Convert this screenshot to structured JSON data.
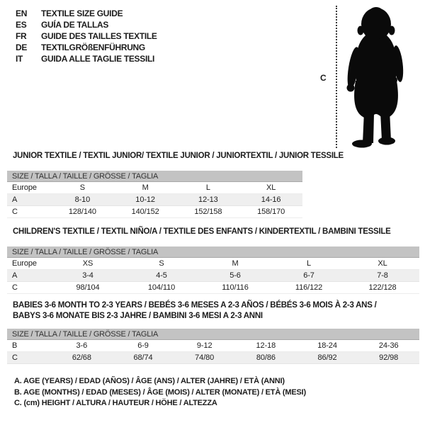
{
  "languages": [
    {
      "code": "EN",
      "label": "TEXTILE SIZE GUIDE"
    },
    {
      "code": "ES",
      "label": "GUÍA DE TALLAS"
    },
    {
      "code": "FR",
      "label": "GUIDE DES TAILLES TEXTILE"
    },
    {
      "code": "DE",
      "label": "TEXTILGRÖßENFÜHRUNG"
    },
    {
      "code": "IT",
      "label": "GUIDA ALLE TAGLIE TESSILI"
    }
  ],
  "figure": {
    "height_label": "C",
    "image": "baby-silhouette"
  },
  "size_header": "SIZE / TALLA / TAILLE / GRÖSSE / TAGLIA",
  "tables": [
    {
      "id": "junior",
      "title_lines": [
        "JUNIOR TEXTILE / TEXTIL JUNIOR/ TEXTILE JUNIOR / JUNIORTEXTIL / JUNIOR TESSILE"
      ],
      "rows": [
        {
          "label": "Europe",
          "cells": [
            "S",
            "M",
            "L",
            "XL"
          ],
          "shaded": false
        },
        {
          "label": "A",
          "cells": [
            "8-10",
            "10-12",
            "12-13",
            "14-16"
          ],
          "shaded": true
        },
        {
          "label": "C",
          "cells": [
            "128/140",
            "140/152",
            "152/158",
            "158/170"
          ],
          "shaded": false
        }
      ]
    },
    {
      "id": "children",
      "title_lines": [
        "CHILDREN'S TEXTILE / TEXTIL NIÑO/A / TEXTILE DES ENFANTS / KINDERTEXTIL / BAMBINI TESSILE"
      ],
      "rows": [
        {
          "label": "Europe",
          "cells": [
            "XS",
            "S",
            "M",
            "L",
            "XL"
          ],
          "shaded": false
        },
        {
          "label": "A",
          "cells": [
            "3-4",
            "4-5",
            "5-6",
            "6-7",
            "7-8"
          ],
          "shaded": true
        },
        {
          "label": "C",
          "cells": [
            "98/104",
            "104/110",
            "110/116",
            "116/122",
            "122/128"
          ],
          "shaded": false
        }
      ]
    },
    {
      "id": "babies",
      "title_lines": [
        "BABIES 3-6 MONTH TO 2-3 YEARS / BEBÉS 3-6 MESES A 2-3 AÑOS / BÉBÉS 3-6 MOIS À 2-3 ANS /",
        "BABYS 3-6 MONATE BIS 2-3 JAHRE / BAMBINI 3-6 MESI A 2-3 ANNI"
      ],
      "rows": [
        {
          "label": "B",
          "cells": [
            "3-6",
            "6-9",
            "9-12",
            "12-18",
            "18-24",
            "24-36"
          ],
          "shaded": false
        },
        {
          "label": "C",
          "cells": [
            "62/68",
            "68/74",
            "74/80",
            "80/86",
            "86/92",
            "92/98"
          ],
          "shaded": true
        }
      ]
    }
  ],
  "legend": [
    "A. AGE (YEARS) / EDAD (AÑOS) / ÂGE (ANS) / ALTER (JAHRE) / ETÀ (ANNI)",
    "B. AGE (MONTHS) / EDAD (MESES) / ÂGE (MOIS) / ALTER (MONATE) / ETÀ (MESI)",
    "C. (cm) HEIGHT / ALTURA / HAUTEUR / HÖHE / ALTEZZA"
  ],
  "colors": {
    "header_bar": "#c3c3c3",
    "shaded_row": "#efefef",
    "text": "#1c1c1c",
    "silhouette": "#0a0a0a"
  }
}
